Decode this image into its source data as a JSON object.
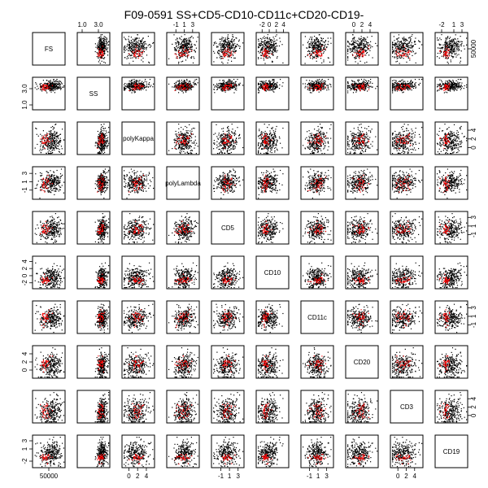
{
  "chart_data": {
    "type": "scatter",
    "subtype": "scatterplot-matrix",
    "title": "F09-0591 SS+CD5-CD10-CD11c+CD20-CD19-",
    "variables": [
      {
        "name": "FS",
        "range": [
          5000,
          95000
        ],
        "ticks": [
          50000
        ],
        "tick_labels": [
          "50000"
        ]
      },
      {
        "name": "SS",
        "range": [
          0.6,
          4.2
        ],
        "ticks": [
          1.0,
          3.0
        ],
        "tick_labels": [
          "1.0",
          "3.0"
        ]
      },
      {
        "name": "polyKappa",
        "range": [
          -1.2,
          5.5
        ],
        "ticks": [
          0,
          2,
          4
        ],
        "tick_labels": [
          "0",
          "2",
          "4"
        ]
      },
      {
        "name": "polyLambda",
        "range": [
          -2.8,
          4.2
        ],
        "ticks": [
          -1,
          1,
          3
        ],
        "tick_labels": [
          "-1",
          "1",
          "3"
        ]
      },
      {
        "name": "CD5",
        "range": [
          -2.8,
          4.0
        ],
        "ticks": [
          -1,
          1,
          3
        ],
        "tick_labels": [
          "-1",
          "1",
          "3"
        ]
      },
      {
        "name": "CD10",
        "range": [
          -3.2,
          5.0
        ],
        "ticks": [
          -2,
          0,
          2,
          4
        ],
        "tick_labels": [
          "-2",
          "0",
          "2",
          "4"
        ]
      },
      {
        "name": "CD11c",
        "range": [
          -2.6,
          4.2
        ],
        "ticks": [
          -1,
          1,
          3
        ],
        "tick_labels": [
          "-1",
          "1",
          "3"
        ]
      },
      {
        "name": "CD20",
        "range": [
          -1.6,
          5.6
        ],
        "ticks": [
          0,
          2,
          4
        ],
        "tick_labels": [
          "0",
          "2",
          "4"
        ]
      },
      {
        "name": "CD3",
        "range": [
          -1.4,
          5.6
        ],
        "ticks": [
          0,
          2,
          4
        ],
        "tick_labels": [
          "0",
          "2",
          "4"
        ]
      },
      {
        "name": "CD19",
        "range": [
          -3.2,
          4.0
        ],
        "ticks": [
          -2,
          1,
          3
        ],
        "tick_labels": [
          "-2",
          "1",
          "3"
        ]
      }
    ],
    "axis_placement": {
      "top": [
        1,
        3,
        5,
        7,
        9
      ],
      "bottom": [
        0,
        2,
        4,
        6,
        8
      ],
      "left": [
        1,
        3,
        5,
        7,
        9
      ],
      "right": [
        0,
        2,
        4,
        6,
        8
      ]
    },
    "series": [
      {
        "role": "all-events",
        "color": "#000000",
        "center": [
          55000,
          3.4,
          1.5,
          0.8,
          0.3,
          -0.4,
          0.6,
          1.2,
          1.0,
          0.0
        ],
        "spread": [
          17000,
          0.3,
          1.4,
          1.2,
          1.3,
          1.4,
          1.3,
          1.6,
          1.5,
          1.4
        ]
      },
      {
        "role": "gated-population",
        "color": "#ff0000",
        "center": [
          40000,
          3.3,
          1.6,
          0.6,
          0.4,
          -1.3,
          0.9,
          1.6,
          1.2,
          -1.0
        ],
        "spread": [
          8000,
          0.2,
          0.9,
          0.9,
          0.8,
          0.5,
          0.8,
          1.0,
          1.0,
          0.5
        ]
      }
    ],
    "grid": false,
    "legend": "none"
  }
}
